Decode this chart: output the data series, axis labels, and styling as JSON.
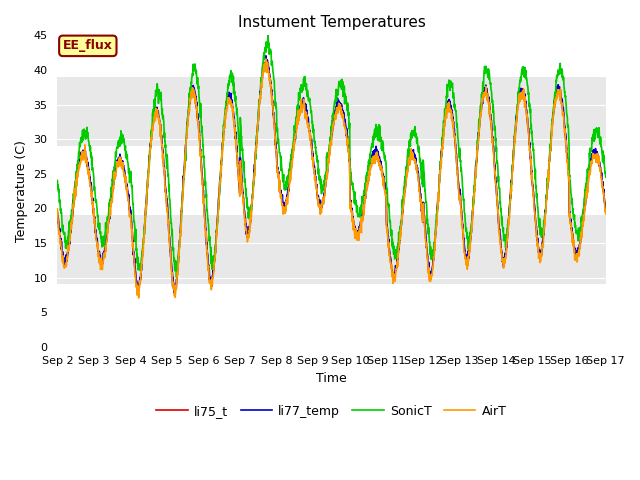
{
  "title": "Instument Temperatures",
  "xlabel": "Time",
  "ylabel": "Temperature (C)",
  "ylim": [
    0,
    45
  ],
  "yticks": [
    0,
    5,
    10,
    15,
    20,
    25,
    30,
    35,
    40,
    45
  ],
  "xtick_labels": [
    "Sep 2",
    "Sep 3",
    "Sep 4",
    "Sep 5",
    "Sep 6",
    "Sep 7",
    "Sep 8",
    "Sep 9",
    "Sep 10",
    "Sep 11",
    "Sep 12",
    "Sep 13",
    "Sep 14",
    "Sep 15",
    "Sep 16",
    "Sep 17"
  ],
  "annotation_text": "EE_flux",
  "annotation_bg": "#ffff99",
  "annotation_border": "#8b0000",
  "line_colors": {
    "li75_t": "#dd0000",
    "li77_temp": "#0000cc",
    "SonicT": "#00cc00",
    "AirT": "#ff9900"
  },
  "bg_color": "#ffffff",
  "plot_bg": "#ffffff",
  "gray_band_color": "#e8e8e8",
  "gray_band_ranges": [
    [
      9,
      19
    ],
    [
      29,
      39
    ]
  ],
  "grid_color": "#cccccc",
  "n_days": 15,
  "day_mins": [
    12,
    12,
    8,
    8,
    9,
    16,
    20,
    20,
    16,
    10,
    10,
    12,
    12,
    13,
    13
  ],
  "day_maxs": [
    28,
    27,
    34,
    37,
    36,
    41,
    35,
    35,
    28,
    28,
    35,
    37,
    37,
    37,
    28
  ],
  "sonic_extra_min": 3,
  "sonic_extra_max": 3,
  "sonic_phase_advance": 0.04,
  "title_fontsize": 11,
  "axis_fontsize": 9,
  "tick_fontsize": 8,
  "legend_fontsize": 9,
  "line_width": 1.2
}
